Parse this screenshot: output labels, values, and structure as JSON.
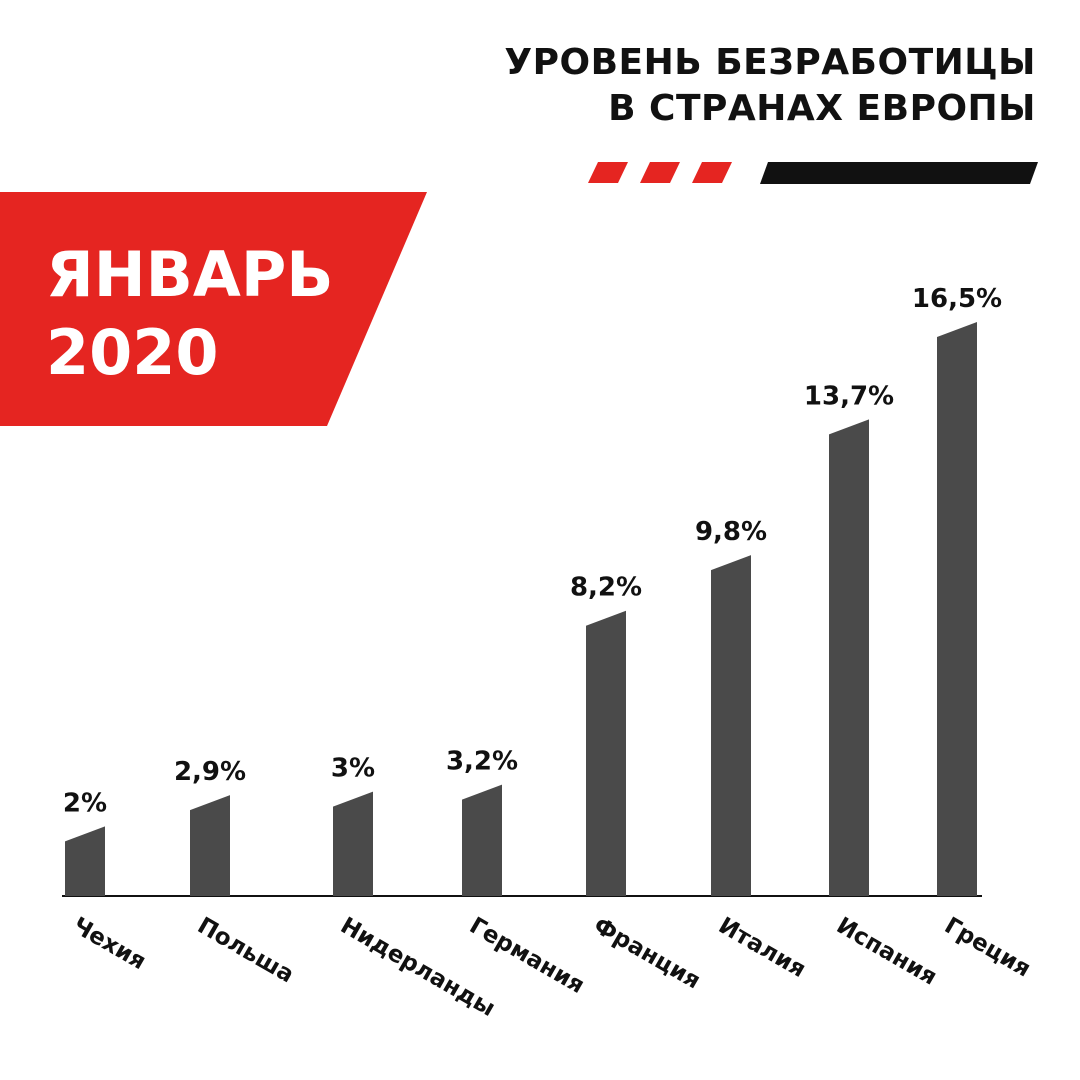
{
  "header": {
    "title_line1": "УРОВЕНЬ БЕЗРАБОТИЦЫ",
    "title_line2": "В СТРАНАХ ЕВРОПЫ"
  },
  "period": {
    "month": "ЯНВАРЬ",
    "year": "2020"
  },
  "colors": {
    "accent_red": "#e52521",
    "bar": "#4a4a4a",
    "text": "#111111"
  },
  "chart_data": {
    "type": "bar",
    "categories": [
      "Чехия",
      "Польша",
      "Нидерланды",
      "Германия",
      "Франция",
      "Италия",
      "Испания",
      "Греция"
    ],
    "values": [
      2,
      2.9,
      3,
      3.2,
      8.2,
      9.8,
      13.7,
      16.5
    ],
    "data_labels": [
      "2%",
      "2,9%",
      "3%",
      "3,2%",
      "8,2%",
      "9,8%",
      "13,7%",
      "16,5%"
    ],
    "title": "УРОВЕНЬ БЕЗРАБОТИЦЫ В СТРАНАХ ЕВРОПЫ",
    "xlabel": "",
    "ylabel": "",
    "grid": false,
    "legend": "none"
  }
}
